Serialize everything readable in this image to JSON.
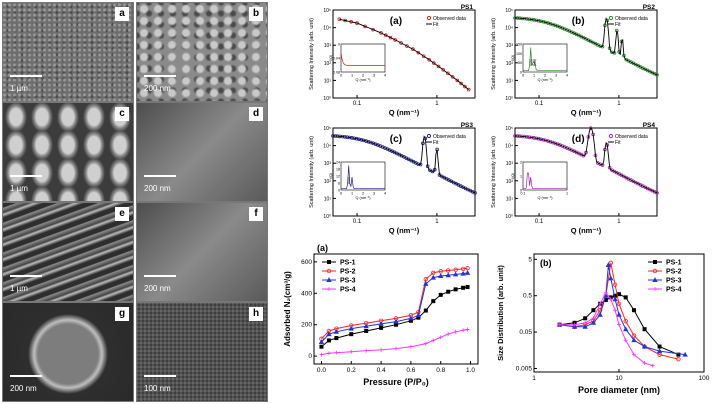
{
  "sem_panels": [
    {
      "letter": "a",
      "scale": "1 µm",
      "bg": "#6e6e6e",
      "pattern": "grain"
    },
    {
      "letter": "b",
      "scale": "200 nm",
      "bg": "#8a8a8a",
      "pattern": "blob"
    },
    {
      "letter": "c",
      "scale": "1 µm",
      "bg": "#3c3c3c",
      "pattern": "rods"
    },
    {
      "letter": "d",
      "scale": "200 nm",
      "bg": "#5d5d5d",
      "pattern": "smooth"
    },
    {
      "letter": "e",
      "scale": "1 µm",
      "bg": "#4a4a4a",
      "pattern": "sheets"
    },
    {
      "letter": "f",
      "scale": "200 nm",
      "bg": "#6f6f6f",
      "pattern": "smooth"
    },
    {
      "letter": "g",
      "scale": "200 nm",
      "bg": "#3a3a3a",
      "pattern": "sphere"
    },
    {
      "letter": "h",
      "scale": "100 nm",
      "bg": "#6a6a6a",
      "pattern": "pores"
    }
  ],
  "chart_data": [
    {
      "type": "line",
      "panel": "(a)",
      "sample": "PS1",
      "color": "#cc2222",
      "xlabel": "Q (nm⁻¹)",
      "ylabel": "Scattering Intensity (arb. unit)",
      "x_scale": "log",
      "y_scale": "log",
      "xlim": [
        0.05,
        3
      ],
      "ylim": [
        1,
        100000
      ],
      "x_ticks": [
        "0.1",
        "1"
      ],
      "y_ticks": [
        "10⁰",
        "10¹",
        "10²",
        "10³",
        "10⁴",
        "10⁵"
      ],
      "legend": [
        "Observed data",
        "Fit"
      ],
      "x": [
        0.06,
        0.1,
        0.2,
        0.3,
        0.5,
        0.8,
        1.2,
        1.8,
        2.5
      ],
      "y": [
        30000,
        18000,
        5000,
        2000,
        600,
        150,
        40,
        10,
        3
      ],
      "inset": {
        "ylabel": "I(Q)",
        "xlabel": "Q (nm⁻¹)",
        "x_ticks": [
          "0",
          "1",
          "2",
          "3",
          "4"
        ],
        "y_ticks": [
          "0.08",
          "0.04",
          "0"
        ]
      }
    },
    {
      "type": "line",
      "panel": "(b)",
      "sample": "PS2",
      "color": "#2a8a2a",
      "xlabel": "Q (nm⁻¹)",
      "ylabel": "Scattering Intensity (arb. unit)",
      "x_scale": "log",
      "y_scale": "log",
      "xlim": [
        0.05,
        3
      ],
      "ylim": [
        1,
        100000
      ],
      "x_ticks": [
        "0.1",
        "1"
      ],
      "y_ticks": [
        "10⁰",
        "10¹",
        "10²",
        "10³",
        "10⁴",
        "10⁵"
      ],
      "legend": [
        "Observed data",
        "Fit"
      ],
      "peaks": [
        0.7,
        0.95,
        1.1
      ],
      "inset": {
        "ylabel": "I(Q)",
        "xlabel": "Q (nm⁻¹)",
        "x_ticks": [
          "0",
          "1",
          "2",
          "3",
          "4"
        ],
        "y_ticks": [
          "0",
          "50",
          "100",
          "150"
        ],
        "peak_labels": [
          "(100)",
          "(110)",
          "(200)"
        ]
      }
    },
    {
      "type": "line",
      "panel": "(c)",
      "sample": "PS3",
      "color": "#22228a",
      "xlabel": "Q (nm⁻¹)",
      "ylabel": "Scattering Intensity (arb. unit)",
      "x_scale": "log",
      "y_scale": "log",
      "xlim": [
        0.05,
        3
      ],
      "ylim": [
        1,
        100000
      ],
      "x_ticks": [
        "0.1",
        "1"
      ],
      "y_ticks": [
        "10⁰",
        "10¹",
        "10²",
        "10³",
        "10⁴",
        "10⁵"
      ],
      "legend": [
        "Observed data",
        "Fit"
      ],
      "peaks": [
        0.7,
        1.0
      ],
      "inset": {
        "ylabel": "I(Q)",
        "xlabel": "Q (nm⁻¹)",
        "x_ticks": [
          "0",
          "1",
          "2",
          "3",
          "4"
        ],
        "y_ticks": [
          "0",
          "6",
          "12",
          "18",
          "24"
        ],
        "peak_labels": [
          "(100)"
        ]
      }
    },
    {
      "type": "line",
      "panel": "(d)",
      "sample": "PS4",
      "color": "#aa22aa",
      "xlabel": "Q (nm⁻¹)",
      "ylabel": "Scattering Intensity (arb. unit)",
      "x_scale": "log",
      "y_scale": "log",
      "xlim": [
        0.05,
        3
      ],
      "ylim": [
        1,
        100000
      ],
      "x_ticks": [
        "0.1",
        "1"
      ],
      "y_ticks": [
        "10⁰",
        "10¹",
        "10²",
        "10³",
        "10⁴",
        "10⁵"
      ],
      "legend": [
        "Observed data",
        "Fit"
      ],
      "peaks": [
        0.45,
        0.7
      ],
      "inset": {
        "ylabel": "I(Q)",
        "xlabel": "Q (nm⁻¹)",
        "x_ticks": [
          "0.1",
          "1"
        ],
        "y_ticks": [
          "0",
          "1",
          "2"
        ]
      }
    },
    {
      "type": "line",
      "panel": "(a)",
      "title": "",
      "xlabel": "Pressure (P/P₀)",
      "ylabel": "Adsorbed N₂(cm³/g)",
      "xlim": [
        -0.05,
        1.05
      ],
      "ylim": [
        -50,
        650
      ],
      "x_ticks": [
        "0.0",
        "0.2",
        "0.4",
        "0.6",
        "0.8",
        "1.0"
      ],
      "y_ticks": [
        "0",
        "200",
        "400",
        "600"
      ],
      "legend_position": "top-left",
      "series": [
        {
          "name": "PS-1",
          "color": "#000000",
          "marker": "square",
          "x": [
            0.0,
            0.05,
            0.1,
            0.2,
            0.3,
            0.4,
            0.5,
            0.6,
            0.65,
            0.7,
            0.75,
            0.8,
            0.85,
            0.9,
            0.95,
            0.98
          ],
          "y": [
            60,
            100,
            115,
            140,
            160,
            180,
            200,
            225,
            245,
            290,
            350,
            390,
            410,
            425,
            435,
            440
          ]
        },
        {
          "name": "PS-2",
          "color": "#ff2222",
          "marker": "circle",
          "x": [
            0.0,
            0.05,
            0.1,
            0.2,
            0.3,
            0.4,
            0.5,
            0.6,
            0.65,
            0.7,
            0.75,
            0.8,
            0.85,
            0.9,
            0.95,
            0.98
          ],
          "y": [
            110,
            160,
            175,
            195,
            210,
            225,
            240,
            260,
            280,
            490,
            530,
            540,
            545,
            550,
            555,
            560
          ]
        },
        {
          "name": "PS-3",
          "color": "#2233dd",
          "marker": "triangle",
          "x": [
            0.0,
            0.05,
            0.1,
            0.2,
            0.3,
            0.4,
            0.5,
            0.6,
            0.65,
            0.7,
            0.75,
            0.8,
            0.85,
            0.9,
            0.95,
            0.98
          ],
          "y": [
            90,
            140,
            155,
            175,
            190,
            205,
            220,
            240,
            260,
            460,
            500,
            510,
            515,
            520,
            525,
            530
          ]
        },
        {
          "name": "PS-4",
          "color": "#ff33ff",
          "marker": "star",
          "x": [
            0.0,
            0.05,
            0.1,
            0.2,
            0.3,
            0.4,
            0.5,
            0.6,
            0.7,
            0.75,
            0.8,
            0.85,
            0.9,
            0.95,
            0.98
          ],
          "y": [
            10,
            18,
            22,
            28,
            35,
            40,
            48,
            60,
            80,
            100,
            120,
            140,
            155,
            165,
            170
          ]
        }
      ]
    },
    {
      "type": "line",
      "panel": "(b)",
      "title": "",
      "xlabel": "Pore diameter (nm)",
      "ylabel": "Size Distribution (arb. unit)",
      "x_scale": "log",
      "y_scale": "log",
      "xlim": [
        1,
        100
      ],
      "ylim": [
        0.004,
        7
      ],
      "x_ticks": [
        "1",
        "10",
        "100"
      ],
      "y_ticks": [
        "0.005",
        "0.05",
        "0.5",
        "5"
      ],
      "legend_position": "top-right",
      "series": [
        {
          "name": "PS-1",
          "color": "#000000",
          "marker": "square",
          "x": [
            2.0,
            3.0,
            4.0,
            5.0,
            6.0,
            7.0,
            8.0,
            9.0,
            10.0,
            12.0,
            15.0,
            20.0,
            30.0,
            50.0
          ],
          "y": [
            0.08,
            0.09,
            0.12,
            0.2,
            0.3,
            0.38,
            0.45,
            0.5,
            0.55,
            0.45,
            0.2,
            0.06,
            0.02,
            0.012
          ]
        },
        {
          "name": "PS-2",
          "color": "#ff2222",
          "marker": "circle",
          "x": [
            2.0,
            3.0,
            4.0,
            5.0,
            6.0,
            7.0,
            8.0,
            9.0,
            10.0,
            12.0,
            15.0,
            20.0,
            30.0,
            50.0
          ],
          "y": [
            0.08,
            0.07,
            0.08,
            0.1,
            0.2,
            0.5,
            4.0,
            1.0,
            0.3,
            0.1,
            0.04,
            0.02,
            0.012,
            0.009
          ]
        },
        {
          "name": "PS-3",
          "color": "#2233dd",
          "marker": "triangle",
          "x": [
            2.0,
            3.0,
            4.0,
            5.0,
            6.0,
            7.0,
            7.5,
            8.0,
            9.0,
            10.0,
            12.0,
            15.0,
            20.0,
            30.0,
            60.0
          ],
          "y": [
            0.08,
            0.07,
            0.07,
            0.09,
            0.15,
            0.5,
            3.5,
            1.5,
            0.4,
            0.15,
            0.06,
            0.03,
            0.02,
            0.015,
            0.012
          ]
        },
        {
          "name": "PS-4",
          "color": "#ff33ff",
          "marker": "star",
          "x": [
            2.0,
            3.0,
            4.0,
            5.0,
            6.0,
            7.0,
            8.0,
            9.0,
            10.0,
            12.0,
            15.0,
            20.0,
            25.0
          ],
          "y": [
            0.08,
            0.08,
            0.09,
            0.12,
            0.3,
            0.6,
            0.4,
            0.2,
            0.08,
            0.03,
            0.012,
            0.007,
            0.006
          ]
        }
      ]
    }
  ]
}
